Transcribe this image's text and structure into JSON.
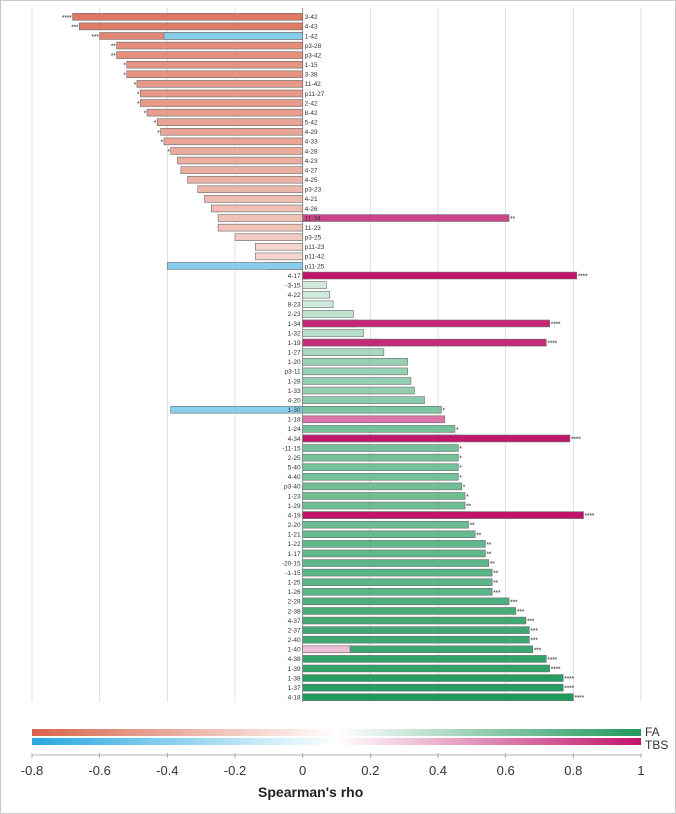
{
  "chart_data": {
    "type": "bar",
    "orientation": "horizontal",
    "xlabel": "Spearman's rho",
    "xlim": [
      -0.8,
      1.0
    ],
    "xticks": [
      -0.8,
      -0.6,
      -0.4,
      -0.2,
      0,
      0.2,
      0.4,
      0.6,
      0.8,
      1
    ],
    "tick_labels": [
      "-0.8",
      "-0.6",
      "-0.4",
      "-0.2",
      "0",
      "0.2",
      "0.4",
      "0.6",
      "0.8",
      "1"
    ],
    "grid": true,
    "legend": [
      {
        "name": "FA",
        "colors": [
          "#d8644a",
          "#ffffff",
          "#1f9a5c"
        ]
      },
      {
        "name": "TBS",
        "colors": [
          "#29a8e0",
          "#ffffff",
          "#c0146a"
        ]
      }
    ],
    "categories": [
      "3-42",
      "4-43",
      "1-42",
      "p3-28",
      "p3-42",
      "1-15",
      "3-38",
      "11-42",
      "p11-27",
      "2-42",
      "8-42",
      "5-42",
      "4-29",
      "4-33",
      "4-28",
      "4-23",
      "4-27",
      "4-25",
      "p3-23",
      "4-21",
      "4-26",
      "11-34",
      "11-23",
      "p3-25",
      "p11-23",
      "p11-42",
      "p11-25",
      "4-17",
      "-3-15",
      "4-22",
      "8-23",
      "2-23",
      "1-34",
      "1-32",
      "1-19",
      "1-27",
      "1-20",
      "p3-11",
      "1-28",
      "1-33",
      "4-20",
      "1-30",
      "1-18",
      "1-24",
      "4-34",
      "-11-15",
      "2-25",
      "5-40",
      "4-40",
      "p3-40",
      "1-23",
      "1-29",
      "4-19",
      "2-20",
      "1-21",
      "1-22",
      "1-17",
      "-20-15",
      "-1-15",
      "1-25",
      "1-26",
      "2-28",
      "2-38",
      "4-37",
      "2-37",
      "2-40",
      "1-40",
      "4-38",
      "1-39",
      "1-38",
      "1-37",
      "4-18"
    ],
    "series": [
      {
        "name": "FA",
        "values": [
          -0.68,
          -0.66,
          -0.6,
          -0.55,
          -0.55,
          -0.52,
          -0.52,
          -0.49,
          -0.48,
          -0.48,
          -0.46,
          -0.43,
          -0.42,
          -0.41,
          -0.39,
          -0.37,
          -0.36,
          -0.34,
          -0.31,
          -0.29,
          -0.27,
          -0.25,
          -0.25,
          -0.2,
          -0.14,
          -0.14,
          -0.1,
          0.02,
          0.07,
          0.08,
          0.09,
          0.15,
          0.16,
          0.18,
          0.23,
          0.24,
          0.31,
          0.31,
          0.32,
          0.33,
          0.36,
          0.41,
          0.41,
          0.45,
          0.46,
          0.46,
          0.46,
          0.46,
          0.46,
          0.47,
          0.48,
          0.48,
          0.49,
          0.49,
          0.51,
          0.54,
          0.54,
          0.55,
          0.56,
          0.56,
          0.56,
          0.61,
          0.63,
          0.66,
          0.67,
          0.67,
          0.68,
          0.72,
          0.73,
          0.77,
          0.77,
          0.8
        ],
        "significance": [
          "****",
          "***",
          "***",
          "**",
          "**",
          "*",
          "*",
          "*",
          "*",
          "*",
          "*",
          "*",
          "*",
          "*",
          "*",
          "",
          "",
          "",
          "",
          "",
          "",
          "",
          "",
          "",
          "",
          "",
          "",
          "",
          "",
          "",
          "",
          "",
          "",
          "",
          "",
          "",
          "",
          "",
          "",
          "",
          "",
          "*",
          "*",
          "*",
          "*",
          "*",
          "*",
          "*",
          "*",
          "*",
          "*",
          "**",
          "**",
          "**",
          "**",
          "**",
          "**",
          "**",
          "**",
          "**",
          "***",
          "***",
          "***",
          "***",
          "***",
          "***",
          "***",
          "****",
          "****",
          "****",
          "****",
          "****"
        ]
      },
      {
        "name": "TBS",
        "values": [
          null,
          null,
          -0.41,
          null,
          null,
          null,
          null,
          null,
          null,
          null,
          null,
          null,
          null,
          null,
          null,
          null,
          null,
          null,
          null,
          null,
          null,
          0.61,
          null,
          null,
          null,
          null,
          -0.4,
          0.81,
          null,
          null,
          null,
          null,
          0.73,
          null,
          0.72,
          null,
          null,
          null,
          null,
          null,
          null,
          -0.39,
          0.42,
          null,
          0.79,
          null,
          null,
          null,
          null,
          null,
          null,
          null,
          0.83,
          null,
          null,
          null,
          null,
          null,
          null,
          null,
          null,
          null,
          null,
          null,
          null,
          null,
          0.14,
          null,
          null,
          null,
          null,
          null
        ],
        "significance": [
          "",
          "",
          "",
          "",
          "",
          "",
          "",
          "",
          "",
          "",
          "",
          "",
          "",
          "",
          "",
          "",
          "",
          "",
          "",
          "",
          "",
          "**",
          "",
          "",
          "",
          "",
          "",
          "****",
          "",
          "",
          "",
          "",
          "****",
          "",
          "****",
          "",
          "",
          "",
          "",
          "",
          "",
          "",
          "",
          "",
          "****",
          "",
          "",
          "",
          "",
          "",
          "",
          "",
          "****",
          "",
          "",
          "",
          "",
          "",
          "",
          "",
          "",
          "",
          "",
          "",
          "",
          "",
          "",
          "",
          "",
          "",
          "",
          ""
        ]
      }
    ],
    "colors": {
      "fa_negative": "#d8644a",
      "fa_positive": "#1f9a5c",
      "tbs_negative": "#29a8e0",
      "tbs_positive": "#c0146a",
      "neutral": "#ffffff"
    }
  }
}
